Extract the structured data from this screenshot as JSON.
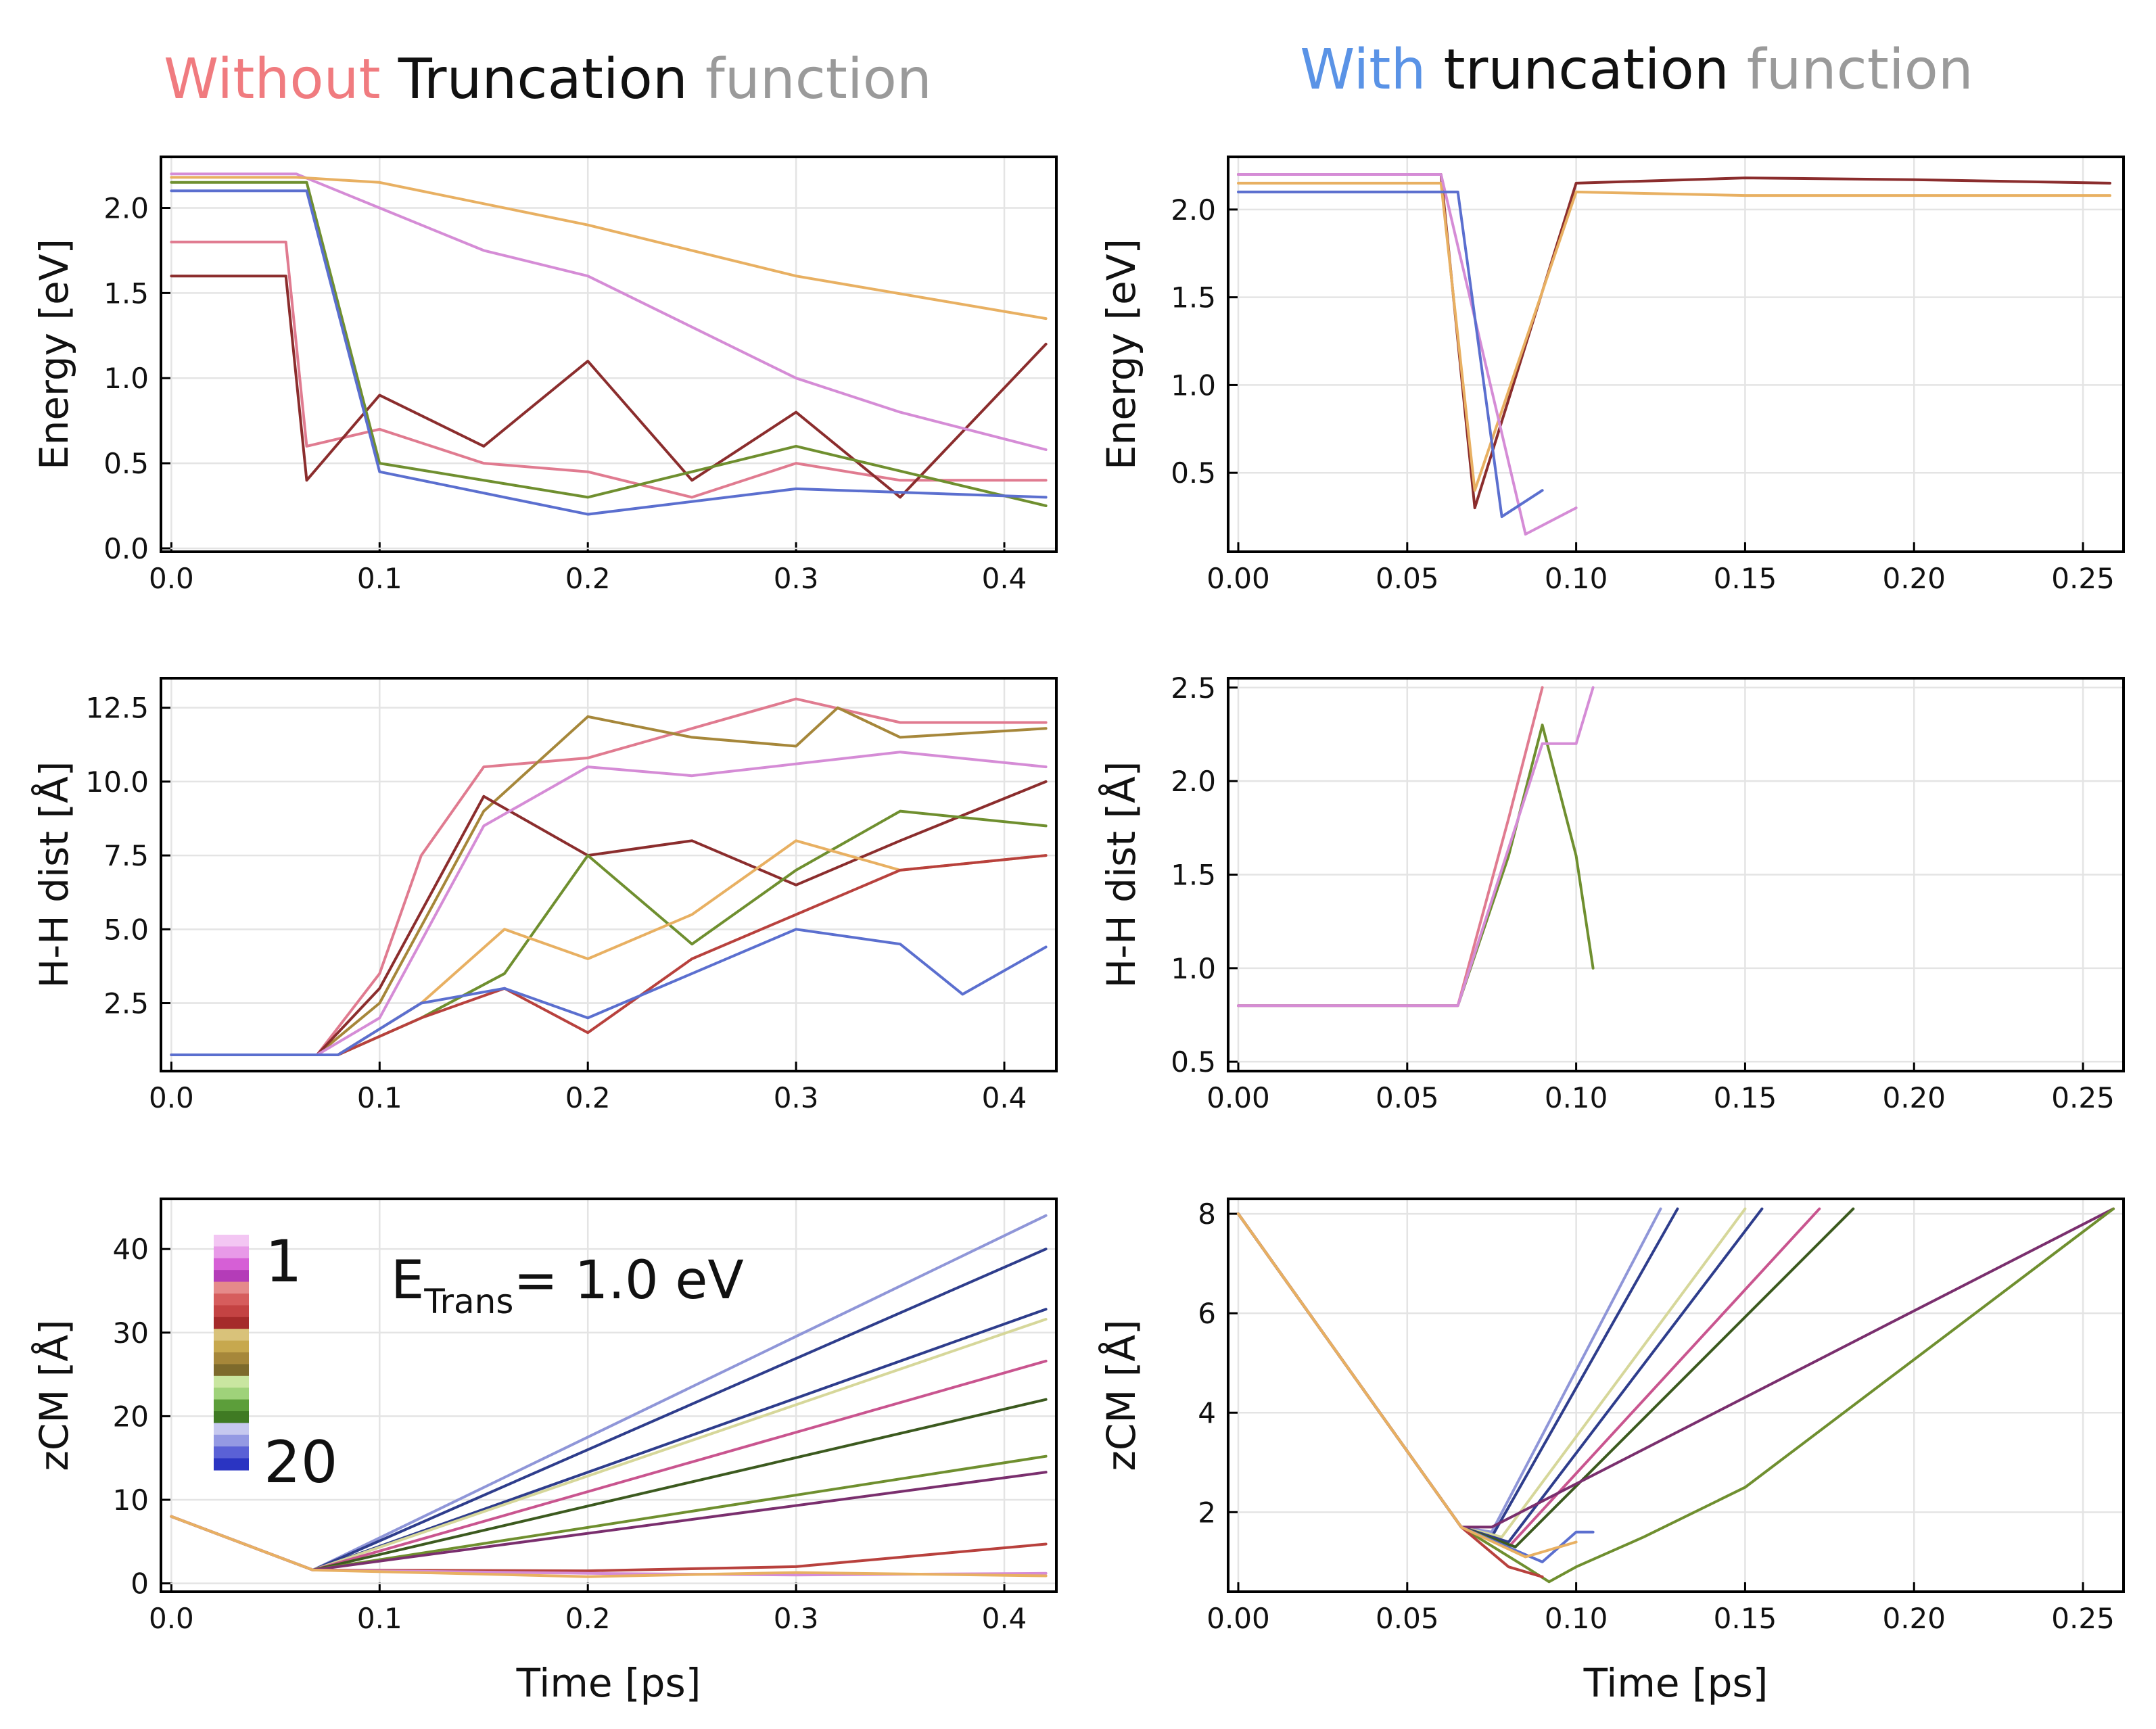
{
  "titles": {
    "left": {
      "w1": "Without",
      "w2": "Truncation",
      "w3": "function"
    },
    "right": {
      "w1": "With",
      "w2": "truncation",
      "w3": "function"
    }
  },
  "annotation": {
    "e_main": "E",
    "e_sub": "Trans",
    "e_rest": "= 1.0 eV"
  },
  "legend": {
    "first_label": "1",
    "last_label": "20",
    "colors": [
      "#f3c6f3",
      "#e89ae8",
      "#d65fd6",
      "#b43cb8",
      "#e58a8a",
      "#d65d5d",
      "#c44343",
      "#a52a2a",
      "#d9c27a",
      "#c7a84e",
      "#a6873a",
      "#7d6a2c",
      "#c9e6a0",
      "#9fd27a",
      "#5c9e3a",
      "#3f7a23",
      "#c6c8ef",
      "#9499e3",
      "#5a61d6",
      "#2a34c2"
    ]
  },
  "palette": [
    "#e07b90",
    "#c9558f",
    "#d58cd6",
    "#8b2d2d",
    "#b8413d",
    "#c9a94a",
    "#e8b062",
    "#8a6d1a",
    "#6f8f2f",
    "#a5c36a",
    "#d6d79a",
    "#5b6fcf",
    "#2e3d8c",
    "#8f96d8",
    "#7a2f6e",
    "#3c5a1f",
    "#c07a3f",
    "#9a4f7a",
    "#4a7fb8",
    "#b3843a"
  ],
  "chart_data": [
    {
      "id": "energy-no-trunc",
      "type": "line",
      "xlabel": "",
      "ylabel": "Energy [eV]",
      "xlim": [
        -0.005,
        0.425
      ],
      "ylim": [
        -0.02,
        2.3
      ],
      "xticks": [
        0.0,
        0.1,
        0.2,
        0.3,
        0.4
      ],
      "xtick_labels": [
        "0.0",
        "0.1",
        "0.2",
        "0.3",
        "0.4"
      ],
      "yticks": [
        0.0,
        0.5,
        1.0,
        1.5,
        2.0
      ],
      "ytick_labels": [
        "0.0",
        "0.5",
        "1.0",
        "1.5",
        "2.0"
      ],
      "grid": true,
      "series": [
        {
          "color": "#e07b90",
          "x": [
            0.0,
            0.055,
            0.065,
            0.1,
            0.15,
            0.2,
            0.25,
            0.3,
            0.35,
            0.42
          ],
          "y": [
            1.8,
            1.8,
            0.6,
            0.7,
            0.5,
            0.45,
            0.3,
            0.5,
            0.4,
            0.4
          ]
        },
        {
          "color": "#8b2d2d",
          "x": [
            0.0,
            0.055,
            0.065,
            0.1,
            0.15,
            0.2,
            0.25,
            0.3,
            0.35,
            0.42
          ],
          "y": [
            1.6,
            1.6,
            0.4,
            0.9,
            0.6,
            1.1,
            0.4,
            0.8,
            0.3,
            1.2
          ]
        },
        {
          "color": "#d58cd6",
          "x": [
            0.0,
            0.06,
            0.1,
            0.15,
            0.2,
            0.25,
            0.3,
            0.35,
            0.42
          ],
          "y": [
            2.2,
            2.2,
            2.0,
            1.75,
            1.6,
            1.3,
            1.0,
            0.8,
            0.58
          ]
        },
        {
          "color": "#e8b062",
          "x": [
            0.0,
            0.06,
            0.1,
            0.2,
            0.3,
            0.42
          ],
          "y": [
            2.18,
            2.18,
            2.15,
            1.9,
            1.6,
            1.35
          ]
        },
        {
          "color": "#6f8f2f",
          "x": [
            0.0,
            0.065,
            0.1,
            0.2,
            0.3,
            0.42
          ],
          "y": [
            2.15,
            2.15,
            0.5,
            0.3,
            0.6,
            0.25
          ]
        },
        {
          "color": "#5b6fcf",
          "x": [
            0.0,
            0.065,
            0.1,
            0.2,
            0.3,
            0.42
          ],
          "y": [
            2.1,
            2.1,
            0.45,
            0.2,
            0.35,
            0.3
          ]
        }
      ]
    },
    {
      "id": "energy-trunc",
      "type": "line",
      "xlabel": "",
      "ylabel": "Energy [eV]",
      "xlim": [
        -0.003,
        0.262
      ],
      "ylim": [
        0.05,
        2.3
      ],
      "xticks": [
        0.0,
        0.05,
        0.1,
        0.15,
        0.2,
        0.25
      ],
      "xtick_labels": [
        "0.00",
        "0.05",
        "0.10",
        "0.15",
        "0.20",
        "0.25"
      ],
      "yticks": [
        0.5,
        1.0,
        1.5,
        2.0
      ],
      "ytick_labels": [
        "0.5",
        "1.0",
        "1.5",
        "2.0"
      ],
      "grid": true,
      "series": [
        {
          "color": "#8b2d2d",
          "x": [
            0.0,
            0.06,
            0.07,
            0.1,
            0.15,
            0.2,
            0.258
          ],
          "y": [
            2.2,
            2.2,
            0.3,
            2.15,
            2.18,
            2.17,
            2.15
          ]
        },
        {
          "color": "#e8b062",
          "x": [
            0.0,
            0.06,
            0.07,
            0.1,
            0.15,
            0.2,
            0.258
          ],
          "y": [
            2.15,
            2.15,
            0.4,
            2.1,
            2.08,
            2.08,
            2.08
          ]
        },
        {
          "color": "#d58cd6",
          "x": [
            0.0,
            0.06,
            0.085,
            0.1
          ],
          "y": [
            2.2,
            2.2,
            0.15,
            0.3
          ]
        },
        {
          "color": "#5b6fcf",
          "x": [
            0.0,
            0.065,
            0.078,
            0.09
          ],
          "y": [
            2.1,
            2.1,
            0.25,
            0.4
          ]
        }
      ]
    },
    {
      "id": "hh-no-trunc",
      "type": "line",
      "xlabel": "",
      "ylabel": "H-H dist [Å]",
      "xlim": [
        -0.005,
        0.425
      ],
      "ylim": [
        0.2,
        13.5
      ],
      "xticks": [
        0.0,
        0.1,
        0.2,
        0.3,
        0.4
      ],
      "xtick_labels": [
        "0.0",
        "0.1",
        "0.2",
        "0.3",
        "0.4"
      ],
      "yticks": [
        2.5,
        5.0,
        7.5,
        10.0,
        12.5
      ],
      "ytick_labels": [
        "2.5",
        "5.0",
        "7.5",
        "10.0",
        "12.5"
      ],
      "grid": true,
      "series": [
        {
          "color": "#e07b90",
          "x": [
            0.0,
            0.07,
            0.1,
            0.12,
            0.15,
            0.2,
            0.25,
            0.3,
            0.35,
            0.42
          ],
          "y": [
            0.75,
            0.75,
            3.5,
            7.5,
            10.5,
            10.8,
            11.8,
            12.8,
            12.0,
            12.0
          ]
        },
        {
          "color": "#a6873a",
          "x": [
            0.0,
            0.07,
            0.1,
            0.15,
            0.2,
            0.25,
            0.3,
            0.32,
            0.35,
            0.42
          ],
          "y": [
            0.75,
            0.75,
            2.5,
            9.0,
            12.2,
            11.5,
            11.2,
            12.5,
            11.5,
            11.8
          ]
        },
        {
          "color": "#8b2d2d",
          "x": [
            0.0,
            0.07,
            0.1,
            0.15,
            0.2,
            0.25,
            0.3,
            0.35,
            0.42
          ],
          "y": [
            0.75,
            0.75,
            3.0,
            9.5,
            7.5,
            8.0,
            6.5,
            8.0,
            10.0
          ]
        },
        {
          "color": "#d58cd6",
          "x": [
            0.0,
            0.07,
            0.1,
            0.15,
            0.2,
            0.25,
            0.3,
            0.35,
            0.42
          ],
          "y": [
            0.75,
            0.75,
            2.0,
            8.5,
            10.5,
            10.2,
            10.6,
            11.0,
            10.5
          ]
        },
        {
          "color": "#6f8f2f",
          "x": [
            0.0,
            0.08,
            0.12,
            0.16,
            0.2,
            0.25,
            0.3,
            0.35,
            0.42
          ],
          "y": [
            0.75,
            0.75,
            2.0,
            3.5,
            7.5,
            4.5,
            7.0,
            9.0,
            8.5
          ]
        },
        {
          "color": "#e8b062",
          "x": [
            0.0,
            0.08,
            0.12,
            0.16,
            0.2,
            0.25,
            0.3,
            0.35,
            0.42
          ],
          "y": [
            0.75,
            0.75,
            2.5,
            5.0,
            4.0,
            5.5,
            8.0,
            7.0,
            7.5
          ]
        },
        {
          "color": "#b8413d",
          "x": [
            0.0,
            0.08,
            0.12,
            0.16,
            0.2,
            0.25,
            0.3,
            0.35,
            0.42
          ],
          "y": [
            0.75,
            0.75,
            2.0,
            3.0,
            1.5,
            4.0,
            5.5,
            7.0,
            7.5
          ]
        },
        {
          "color": "#5b6fcf",
          "x": [
            0.0,
            0.08,
            0.12,
            0.16,
            0.2,
            0.25,
            0.3,
            0.35,
            0.38,
            0.42
          ],
          "y": [
            0.75,
            0.75,
            2.5,
            3.0,
            2.0,
            3.5,
            5.0,
            4.5,
            2.8,
            4.4
          ]
        }
      ]
    },
    {
      "id": "hh-trunc",
      "type": "line",
      "xlabel": "",
      "ylabel": "H-H dist [Å]",
      "xlim": [
        -0.003,
        0.262
      ],
      "ylim": [
        0.45,
        2.55
      ],
      "xticks": [
        0.0,
        0.05,
        0.1,
        0.15,
        0.2,
        0.25
      ],
      "xtick_labels": [
        "0.00",
        "0.05",
        "0.10",
        "0.15",
        "0.20",
        "0.25"
      ],
      "yticks": [
        0.5,
        1.0,
        1.5,
        2.0,
        2.5
      ],
      "ytick_labels": [
        "0.5",
        "1.0",
        "1.5",
        "2.0",
        "2.5"
      ],
      "grid": true,
      "series": [
        {
          "color": "#6f8f2f",
          "x": [
            0.0,
            0.065,
            0.08,
            0.09,
            0.1,
            0.105
          ],
          "y": [
            0.8,
            0.8,
            1.6,
            2.3,
            1.6,
            1.0
          ]
        },
        {
          "color": "#e07b90",
          "x": [
            0.0,
            0.065,
            0.08,
            0.09
          ],
          "y": [
            0.8,
            0.8,
            1.8,
            2.5
          ]
        },
        {
          "color": "#d58cd6",
          "x": [
            0.0,
            0.065,
            0.09,
            0.1,
            0.105
          ],
          "y": [
            0.8,
            0.8,
            2.2,
            2.2,
            2.5
          ]
        }
      ]
    },
    {
      "id": "zcm-no-trunc",
      "type": "line",
      "xlabel": "Time [ps]",
      "ylabel": "zCM [Å]",
      "xlim": [
        -0.005,
        0.425
      ],
      "ylim": [
        -1,
        46
      ],
      "xticks": [
        0.0,
        0.1,
        0.2,
        0.3,
        0.4
      ],
      "xtick_labels": [
        "0.0",
        "0.1",
        "0.2",
        "0.3",
        "0.4"
      ],
      "yticks": [
        0,
        10,
        20,
        30,
        40
      ],
      "ytick_labels": [
        "0",
        "10",
        "20",
        "30",
        "40"
      ],
      "grid": true,
      "series": [
        {
          "color": "#8f96d8",
          "x": [
            0.0,
            0.068,
            0.42
          ],
          "y": [
            8.0,
            1.6,
            44.0
          ]
        },
        {
          "color": "#2e3d8c",
          "x": [
            0.0,
            0.068,
            0.42
          ],
          "y": [
            8.0,
            1.6,
            40.0
          ]
        },
        {
          "color": "#2e3d8c",
          "x": [
            0.0,
            0.068,
            0.42
          ],
          "y": [
            8.0,
            1.6,
            32.8
          ]
        },
        {
          "color": "#d6d79a",
          "x": [
            0.0,
            0.068,
            0.42
          ],
          "y": [
            8.0,
            1.6,
            31.6
          ]
        },
        {
          "color": "#c9558f",
          "x": [
            0.0,
            0.068,
            0.42
          ],
          "y": [
            8.0,
            1.6,
            26.6
          ]
        },
        {
          "color": "#3c5a1f",
          "x": [
            0.0,
            0.068,
            0.42
          ],
          "y": [
            8.0,
            1.6,
            22.0
          ]
        },
        {
          "color": "#6f8f2f",
          "x": [
            0.0,
            0.068,
            0.42
          ],
          "y": [
            8.0,
            1.6,
            15.2
          ]
        },
        {
          "color": "#7a2f6e",
          "x": [
            0.0,
            0.068,
            0.42
          ],
          "y": [
            8.0,
            1.6,
            13.3
          ]
        },
        {
          "color": "#b8413d",
          "x": [
            0.0,
            0.068,
            0.2,
            0.3,
            0.42
          ],
          "y": [
            8.0,
            1.6,
            1.5,
            2.0,
            4.7
          ]
        },
        {
          "color": "#d58cd6",
          "x": [
            0.0,
            0.068,
            0.2,
            0.3,
            0.42
          ],
          "y": [
            8.0,
            1.6,
            1.2,
            1.0,
            1.2
          ]
        },
        {
          "color": "#e8b062",
          "x": [
            0.0,
            0.068,
            0.2,
            0.3,
            0.42
          ],
          "y": [
            8.0,
            1.6,
            0.8,
            1.3,
            0.9
          ]
        }
      ]
    },
    {
      "id": "zcm-trunc",
      "type": "line",
      "xlabel": "Time [ps]",
      "ylabel": "zCM [Å]",
      "xlim": [
        -0.003,
        0.262
      ],
      "ylim": [
        0.4,
        8.3
      ],
      "xticks": [
        0.0,
        0.05,
        0.1,
        0.15,
        0.2,
        0.25
      ],
      "xtick_labels": [
        "0.00",
        "0.05",
        "0.10",
        "0.15",
        "0.20",
        "0.25"
      ],
      "yticks": [
        2,
        4,
        6,
        8
      ],
      "ytick_labels": [
        "2",
        "4",
        "6",
        "8"
      ],
      "grid": true,
      "series": [
        {
          "color": "#8f96d8",
          "x": [
            0.0,
            0.066,
            0.075,
            0.125
          ],
          "y": [
            8.0,
            1.7,
            1.6,
            8.1
          ]
        },
        {
          "color": "#2e3d8c",
          "x": [
            0.0,
            0.066,
            0.075,
            0.13
          ],
          "y": [
            8.0,
            1.7,
            1.5,
            8.1
          ]
        },
        {
          "color": "#d6d79a",
          "x": [
            0.0,
            0.066,
            0.078,
            0.15
          ],
          "y": [
            8.0,
            1.7,
            1.5,
            8.1
          ]
        },
        {
          "color": "#2e3d8c",
          "x": [
            0.0,
            0.066,
            0.08,
            0.155
          ],
          "y": [
            8.0,
            1.7,
            1.4,
            8.1
          ]
        },
        {
          "color": "#c9558f",
          "x": [
            0.0,
            0.066,
            0.08,
            0.172
          ],
          "y": [
            8.0,
            1.7,
            1.3,
            8.1
          ]
        },
        {
          "color": "#3c5a1f",
          "x": [
            0.0,
            0.066,
            0.082,
            0.182
          ],
          "y": [
            8.0,
            1.7,
            1.3,
            8.1
          ]
        },
        {
          "color": "#7a2f6e",
          "x": [
            0.0,
            0.066,
            0.075,
            0.259
          ],
          "y": [
            8.0,
            1.7,
            1.7,
            8.1
          ]
        },
        {
          "color": "#6f8f2f",
          "x": [
            0.0,
            0.066,
            0.085,
            0.092,
            0.1,
            0.12,
            0.15,
            0.259
          ],
          "y": [
            8.0,
            1.7,
            0.9,
            0.6,
            0.9,
            1.5,
            2.5,
            8.1
          ]
        },
        {
          "color": "#5b6fcf",
          "x": [
            0.0,
            0.066,
            0.09,
            0.1,
            0.105
          ],
          "y": [
            8.0,
            1.7,
            1.0,
            1.6,
            1.6
          ]
        },
        {
          "color": "#b8413d",
          "x": [
            0.0,
            0.066,
            0.08,
            0.09
          ],
          "y": [
            8.0,
            1.7,
            0.9,
            0.7
          ]
        },
        {
          "color": "#e8b062",
          "x": [
            0.0,
            0.066,
            0.085,
            0.1
          ],
          "y": [
            8.0,
            1.7,
            1.1,
            1.4
          ]
        }
      ]
    }
  ]
}
